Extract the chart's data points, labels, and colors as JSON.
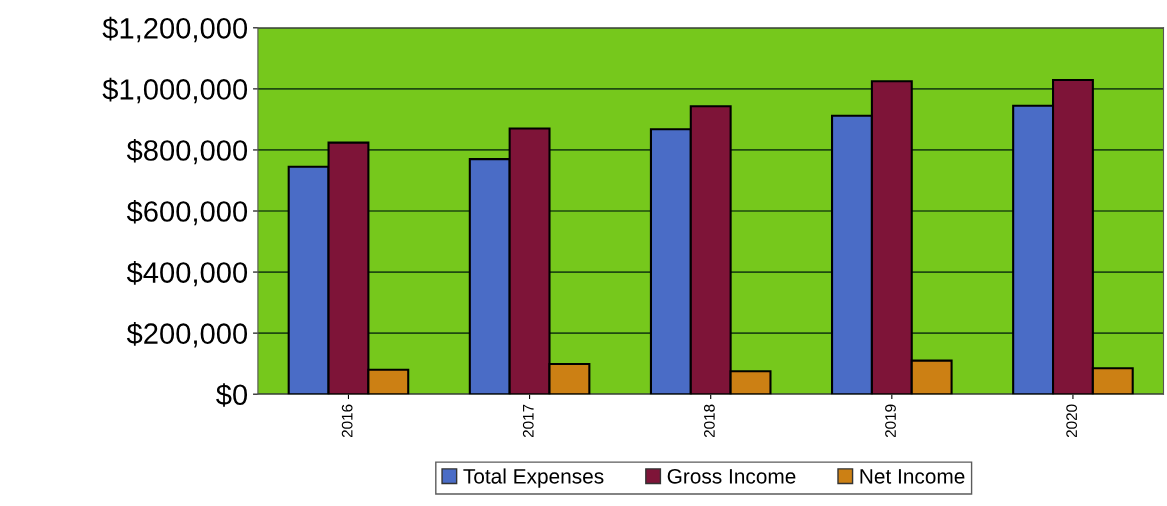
{
  "chart_data": {
    "type": "bar",
    "categories": [
      "2016",
      "2017",
      "2018",
      "2019",
      "2020"
    ],
    "series": [
      {
        "name": "Total Expenses",
        "color": "#4a6cc6",
        "values": [
          745000,
          770000,
          868000,
          912000,
          945000
        ]
      },
      {
        "name": "Gross Income",
        "color": "#7e1438",
        "values": [
          824000,
          870000,
          943000,
          1025000,
          1029000
        ]
      },
      {
        "name": "Net Income",
        "color": "#cc8014",
        "values": [
          80000,
          99000,
          75000,
          110000,
          85000
        ]
      }
    ],
    "ylim": [
      0,
      1200000
    ],
    "yticks": [
      {
        "value": 0,
        "label": "$0"
      },
      {
        "value": 200000,
        "label": "$200,000"
      },
      {
        "value": 400000,
        "label": "$400,000"
      },
      {
        "value": 600000,
        "label": "$600,000"
      },
      {
        "value": 800000,
        "label": "$800,000"
      },
      {
        "value": 1000000,
        "label": "$1,000,000"
      },
      {
        "value": 1200000,
        "label": "$1,200,000"
      }
    ],
    "grid": "y",
    "legend": "bottom"
  }
}
